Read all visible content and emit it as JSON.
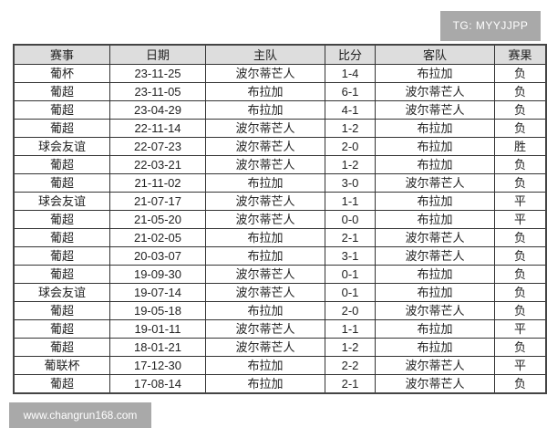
{
  "watermarks": {
    "top": "TG: MYYJJPP",
    "bottom": "www.changrun168.com"
  },
  "table": {
    "headers": [
      "赛事",
      "日期",
      "主队",
      "比分",
      "客队",
      "赛果"
    ],
    "rows": [
      [
        "葡杯",
        "23-11-25",
        "波尔蒂芒人",
        "1-4",
        "布拉加",
        "负"
      ],
      [
        "葡超",
        "23-11-05",
        "布拉加",
        "6-1",
        "波尔蒂芒人",
        "负"
      ],
      [
        "葡超",
        "23-04-29",
        "布拉加",
        "4-1",
        "波尔蒂芒人",
        "负"
      ],
      [
        "葡超",
        "22-11-14",
        "波尔蒂芒人",
        "1-2",
        "布拉加",
        "负"
      ],
      [
        "球会友谊",
        "22-07-23",
        "波尔蒂芒人",
        "2-0",
        "布拉加",
        "胜"
      ],
      [
        "葡超",
        "22-03-21",
        "波尔蒂芒人",
        "1-2",
        "布拉加",
        "负"
      ],
      [
        "葡超",
        "21-11-02",
        "布拉加",
        "3-0",
        "波尔蒂芒人",
        "负"
      ],
      [
        "球会友谊",
        "21-07-17",
        "波尔蒂芒人",
        "1-1",
        "布拉加",
        "平"
      ],
      [
        "葡超",
        "21-05-20",
        "波尔蒂芒人",
        "0-0",
        "布拉加",
        "平"
      ],
      [
        "葡超",
        "21-02-05",
        "布拉加",
        "2-1",
        "波尔蒂芒人",
        "负"
      ],
      [
        "葡超",
        "20-03-07",
        "布拉加",
        "3-1",
        "波尔蒂芒人",
        "负"
      ],
      [
        "葡超",
        "19-09-30",
        "波尔蒂芒人",
        "0-1",
        "布拉加",
        "负"
      ],
      [
        "球会友谊",
        "19-07-14",
        "波尔蒂芒人",
        "0-1",
        "布拉加",
        "负"
      ],
      [
        "葡超",
        "19-05-18",
        "布拉加",
        "2-0",
        "波尔蒂芒人",
        "负"
      ],
      [
        "葡超",
        "19-01-11",
        "波尔蒂芒人",
        "1-1",
        "布拉加",
        "平"
      ],
      [
        "葡超",
        "18-01-21",
        "波尔蒂芒人",
        "1-2",
        "布拉加",
        "负"
      ],
      [
        "葡联杯",
        "17-12-30",
        "布拉加",
        "2-2",
        "波尔蒂芒人",
        "平"
      ],
      [
        "葡超",
        "17-08-14",
        "布拉加",
        "2-1",
        "波尔蒂芒人",
        "负"
      ]
    ]
  }
}
